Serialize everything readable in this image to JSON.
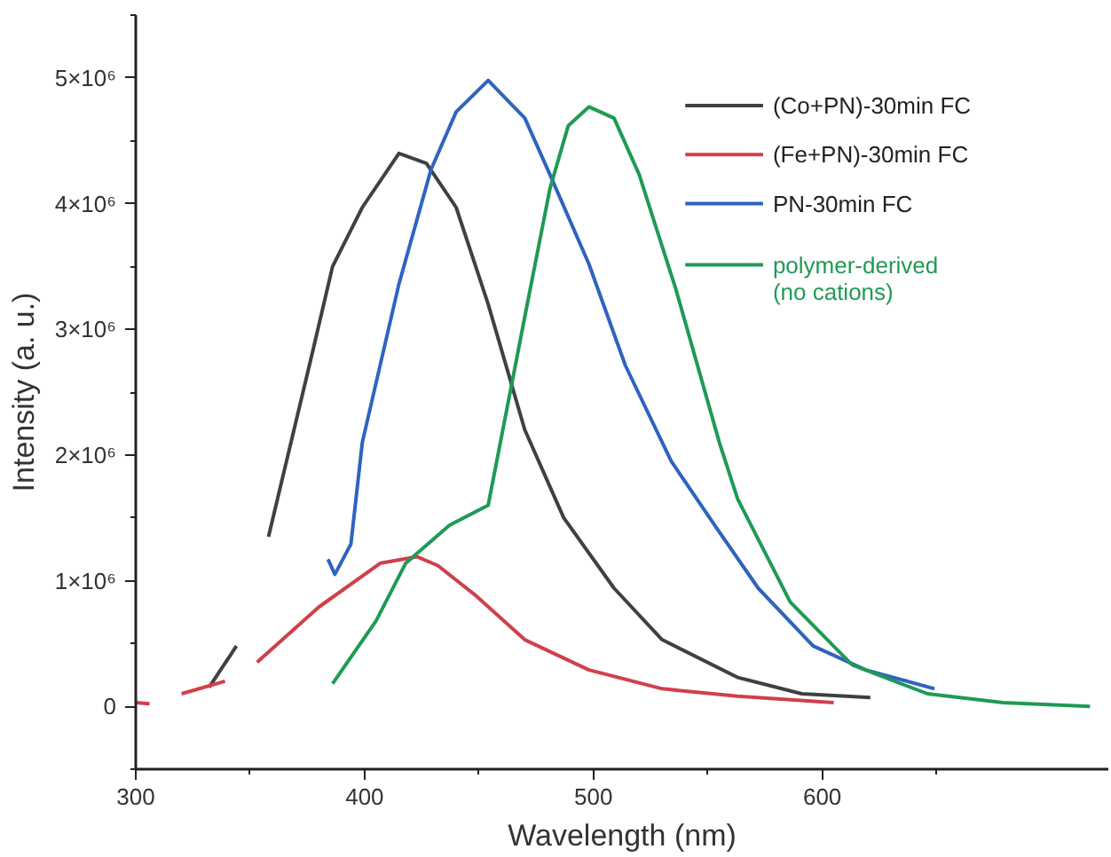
{
  "chart_data": {
    "type": "line",
    "xlabel": "Wavelength (nm)",
    "ylabel": "Intensity (a. u.)",
    "xlim": [
      300,
      725
    ],
    "ylim": [
      -500000,
      5500000
    ],
    "xticks": [
      300,
      400,
      500,
      600
    ],
    "yticks": [
      {
        "value": 0,
        "label": "0"
      },
      {
        "value": 1000000,
        "label": "1×10⁶"
      },
      {
        "value": 2000000,
        "label": "2×10⁶"
      },
      {
        "value": 3000000,
        "label": "3×10⁶"
      },
      {
        "value": 4000000,
        "label": "4×10⁶"
      },
      {
        "value": 5000000,
        "label": "5×10⁶"
      }
    ],
    "grid": false,
    "legend": "top right",
    "line_style": "solid",
    "marker": "none",
    "series": [
      {
        "name": "(Co+PN)-30min FC",
        "color": "#404040",
        "x": [
          332,
          344,
          350,
          358,
          377,
          386,
          399,
          415,
          427,
          440,
          454,
          470,
          487,
          509,
          530,
          563,
          591,
          621
        ],
        "values": [
          150000,
          480000,
          null,
          1350000,
          2800000,
          3500000,
          3970000,
          4400000,
          4320000,
          3970000,
          3200000,
          2200000,
          1500000,
          940000,
          530000,
          230000,
          100000,
          70000
        ]
      },
      {
        "name": "(Fe+PN)-30min FC",
        "color": "#d0404a",
        "x": [
          300,
          306,
          310,
          320,
          339,
          346,
          353,
          380,
          407,
          423,
          432,
          448,
          470,
          498,
          530,
          563,
          605
        ],
        "values": [
          30000,
          20000,
          null,
          100000,
          200000,
          null,
          350000,
          790000,
          1140000,
          1190000,
          1120000,
          890000,
          530000,
          290000,
          140000,
          80000,
          30000
        ]
      },
      {
        "name": "PN-30min FC",
        "color": "#2f63c0",
        "x": [
          384,
          387,
          394,
          399,
          415,
          429,
          440,
          454,
          470,
          481,
          498,
          514,
          534,
          553,
          572,
          596,
          619,
          649
        ],
        "values": [
          1170000,
          1050000,
          1290000,
          2100000,
          3360000,
          4270000,
          4730000,
          4980000,
          4680000,
          4230000,
          3520000,
          2710000,
          1950000,
          1440000,
          940000,
          480000,
          290000,
          140000
        ]
      },
      {
        "name": "polymer-derived\n(no cations)",
        "color": "#1f9a55",
        "x": [
          386,
          405,
          418,
          437,
          454,
          470,
          481,
          489,
          498,
          509,
          520,
          536,
          555,
          563,
          586,
          613,
          646,
          679,
          717
        ],
        "values": [
          180000,
          680000,
          1140000,
          1440000,
          1600000,
          3100000,
          4120000,
          4620000,
          4770000,
          4680000,
          4230000,
          3320000,
          2100000,
          1650000,
          830000,
          330000,
          100000,
          30000,
          0
        ]
      }
    ]
  }
}
